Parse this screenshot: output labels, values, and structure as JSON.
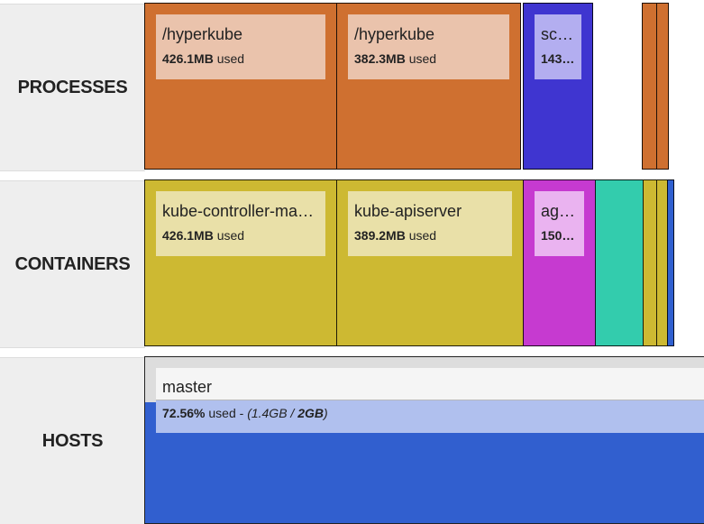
{
  "rows": {
    "processes": {
      "label": "PROCESSES"
    },
    "containers": {
      "label": "CONTAINERS"
    },
    "hosts": {
      "label": "HOSTS"
    }
  },
  "processes": [
    {
      "title": "/hyperkube",
      "amount": "426.1MB",
      "suffix": "used",
      "color": "#cf7030"
    },
    {
      "title": "/hyperkube",
      "amount": "382.3MB",
      "suffix": "used",
      "color": "#cf7030"
    },
    {
      "title": "sc…",
      "amount": "143…",
      "suffix": "",
      "color": "#3f35d0"
    }
  ],
  "containers": [
    {
      "title": "kube-controller-ma…",
      "amount": "426.1MB",
      "suffix": "used",
      "color": "#cdb932"
    },
    {
      "title": "kube-apiserver",
      "amount": "389.2MB",
      "suffix": "used",
      "color": "#cdb932"
    },
    {
      "title": "ag…",
      "amount": "150…",
      "suffix": "",
      "color": "#c63ad0"
    }
  ],
  "host": {
    "title": "master",
    "percent": "72.56%",
    "used_word": "used",
    "sep": "-",
    "detail_open": "(1.4GB /",
    "detail_total": "2GB",
    "detail_close": ")",
    "fill_fraction": 0.7256,
    "color": "#315fcf"
  }
}
